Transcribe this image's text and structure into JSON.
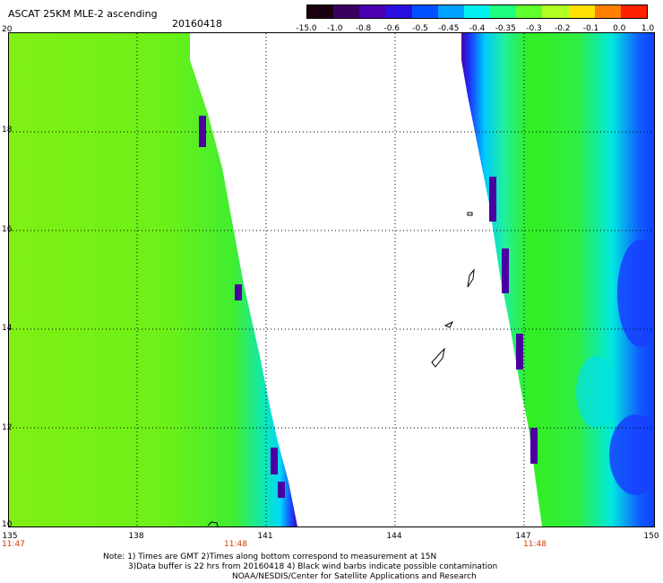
{
  "header": {
    "title": "ASCAT 25KM MLE-2 ascending",
    "date": "20160418"
  },
  "colorbar": {
    "labels": [
      "-15.0",
      "-1.0",
      "-0.8",
      "-0.6",
      "-0.5",
      "-0.45",
      "-0.4",
      "-0.35",
      "-0.3",
      "-0.2",
      "-0.1",
      "0.0",
      "1.0"
    ],
    "colors": [
      "#1a0010",
      "#3a0060",
      "#4a00b0",
      "#2a10e0",
      "#0050ff",
      "#00a0ff",
      "#00f0f0",
      "#20ff80",
      "#60ff30",
      "#b0ff20",
      "#ffe000",
      "#ff8000",
      "#ff2000"
    ]
  },
  "map": {
    "lat_labels": [
      "20",
      "18",
      "16",
      "14",
      "12",
      "10"
    ],
    "lon_labels": [
      "135",
      "138",
      "141",
      "144",
      "147",
      "150"
    ],
    "time_labels": [
      "11:47",
      "11:48",
      "11:48"
    ],
    "grid": true
  },
  "notes": {
    "line1": "Note: 1) Times are GMT 2)Times along bottom correspond to measurement at 15N",
    "line2": "3)Data buffer is 22 hrs from 20160418 4) Black wind barbs indicate possible contamination",
    "line3": "NOAA/NESDIS/Center for Satellite Applications and Research"
  },
  "colors": {
    "green": "#33ee22",
    "yellowgreen": "#88f010",
    "cyan": "#00e8e8",
    "blue": "#1040ff",
    "purple": "#4a00a0",
    "time_red": "#d83a00"
  }
}
